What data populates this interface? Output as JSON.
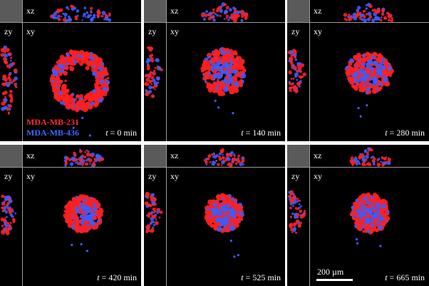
{
  "view_labels": {
    "xz": "xz",
    "zy": "zy",
    "xy": "xy"
  },
  "legend": {
    "items": [
      {
        "label": "MDA-MB-231",
        "color": "#ff2a2a"
      },
      {
        "label": "MDA-MB-436",
        "color": "#3a6bff"
      }
    ]
  },
  "time_prefix": "t",
  "time_unit": "min",
  "panels": [
    {
      "time": "0",
      "shape": "ring"
    },
    {
      "time": "140",
      "shape": "blob"
    },
    {
      "time": "280",
      "shape": "blob"
    },
    {
      "time": "420",
      "shape": "blob"
    },
    {
      "time": "525",
      "shape": "blob"
    },
    {
      "time": "665",
      "shape": "blob"
    }
  ],
  "scale_bar": {
    "label": "200 µm"
  },
  "colors": {
    "red_cells": "#ff2020",
    "blue_cells": "#3b5cff",
    "background": "#000000",
    "corner_gray": "#5a5a5a",
    "divider": "#9a9a9a"
  }
}
